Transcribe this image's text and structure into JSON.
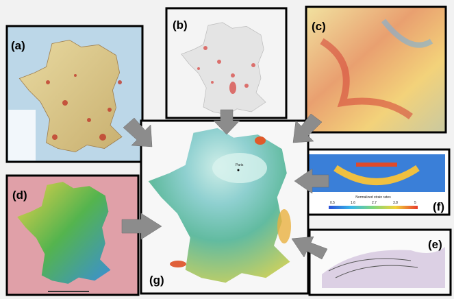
{
  "panels": [
    {
      "label": "(a)"
    },
    {
      "label": "(b)"
    },
    {
      "label": "(c)"
    },
    {
      "label": "(d)"
    },
    {
      "label": "(e)"
    },
    {
      "label": "(f)"
    },
    {
      "label": "(g)"
    }
  ],
  "panel_g": {
    "city": "Paris"
  },
  "panel_f": {
    "colorbar_title": "Normalized strain rates",
    "colorbar_ticks": [
      "0.5",
      "1.6",
      "2.7",
      "3.8",
      "5"
    ]
  }
}
